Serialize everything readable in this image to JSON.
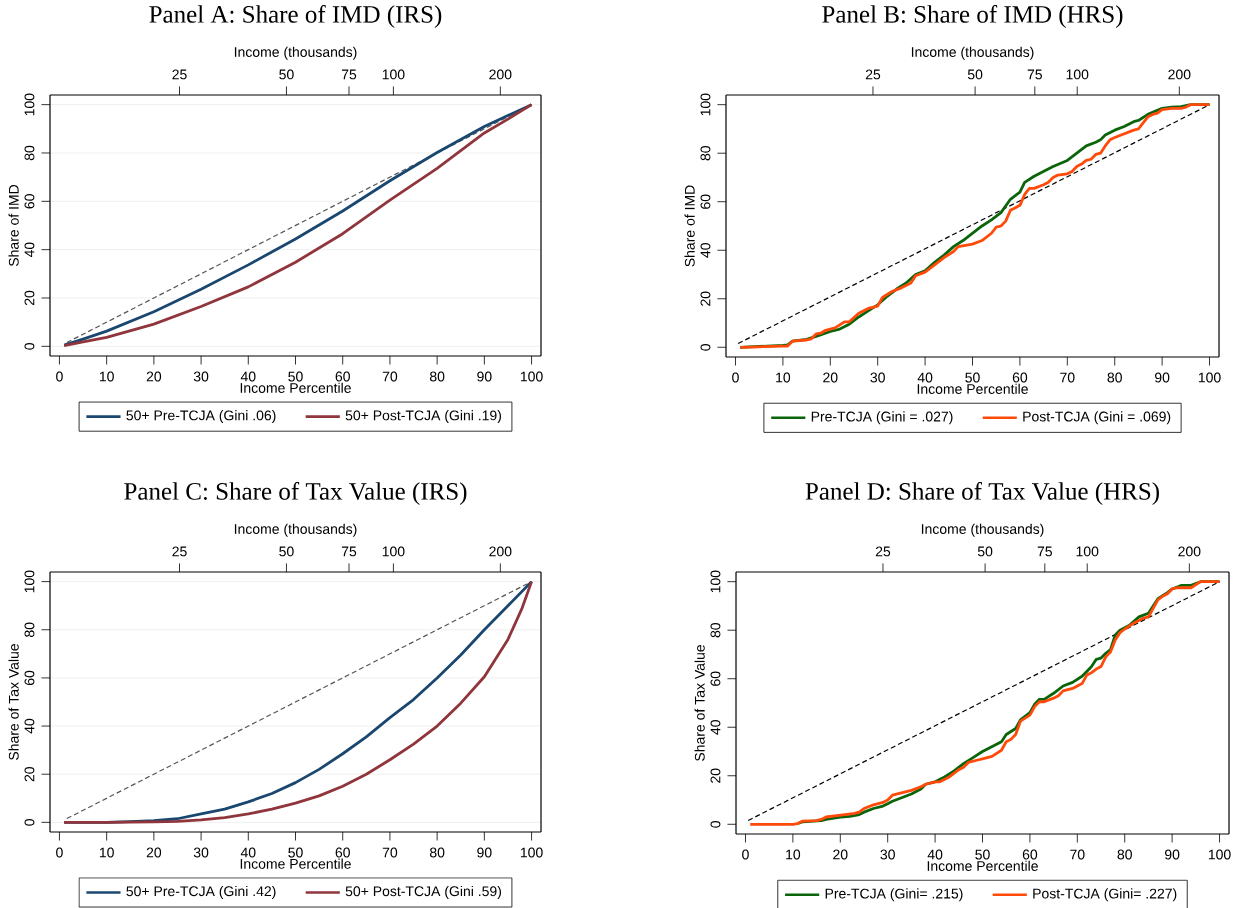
{
  "chart_data": [
    {
      "type": "line",
      "title": "Panel A: Share of IMD (IRS)",
      "xlabel": "Income Percentile",
      "ylabel": "Share of IMD",
      "x2label": "Income (thousands)",
      "xlim": [
        -2,
        102
      ],
      "ylim": [
        -4,
        104
      ],
      "xticks": [
        0,
        10,
        20,
        30,
        40,
        50,
        60,
        70,
        80,
        90,
        100
      ],
      "yticks": [
        0,
        20,
        40,
        60,
        80,
        100
      ],
      "x2lim": [
        10.8,
        260.3
      ],
      "x2ticks": [
        25,
        50,
        75,
        100,
        200
      ],
      "log": "x2",
      "grid": "y",
      "legend": "bottom",
      "marker": "none",
      "series": [
        {
          "color": "#555555",
          "line_style": "dashed",
          "x": [
            1,
            100
          ],
          "values": [
            1,
            100
          ]
        },
        {
          "name": "50+ Pre-TCJA (Gini .06)",
          "color": "#1a476f",
          "line_style": "solid",
          "x": [
            1,
            5,
            10,
            20,
            30,
            40,
            50,
            60,
            70,
            80,
            90,
            100
          ],
          "values": [
            0.5,
            3,
            6.3,
            14.3,
            23.6,
            33.7,
            44.4,
            56,
            68.5,
            80.2,
            91,
            100
          ]
        },
        {
          "name": "50+ Post-TCJA (Gini .19)",
          "color": "#90353b",
          "line_style": "solid",
          "x": [
            1,
            5,
            10,
            20,
            30,
            40,
            50,
            60,
            70,
            80,
            90,
            95,
            100
          ],
          "values": [
            0.3,
            1.8,
            3.7,
            9.2,
            16.5,
            24.6,
            34.8,
            46.6,
            60.5,
            73.6,
            88.3,
            94,
            100
          ]
        }
      ]
    },
    {
      "type": "line",
      "title": "Panel B: Share of IMD (HRS)",
      "xlabel": "Income Percentile",
      "ylabel": "Share of IMD",
      "x2label": "Income (thousands)",
      "xlim": [
        -2,
        102
      ],
      "ylim": [
        -4,
        104
      ],
      "xticks": [
        0,
        10,
        20,
        30,
        40,
        50,
        60,
        70,
        80,
        90,
        100
      ],
      "yticks": [
        0,
        20,
        40,
        60,
        80,
        100
      ],
      "x2lim": [
        9.22,
        261.8
      ],
      "x2ticks": [
        25,
        50,
        75,
        100,
        200
      ],
      "log": "x2",
      "legend": "bottom",
      "marker": "none",
      "series": [
        {
          "color": "#000000",
          "line_style": "dashed",
          "x": [
            0,
            100
          ],
          "values": [
            1,
            100
          ]
        },
        {
          "name": "Pre-TCJA (Gini = .027)",
          "color": "#0a640a",
          "line_style": "solid",
          "x": [
            1,
            10,
            11,
            12,
            15,
            17,
            20,
            22,
            24,
            26,
            28,
            30,
            32,
            34,
            36,
            38,
            40,
            42,
            44,
            46,
            48,
            50,
            52,
            54,
            56,
            58,
            60,
            61,
            63,
            65,
            67,
            70,
            72,
            74,
            76,
            77,
            78,
            80,
            82,
            84,
            85,
            87,
            90,
            92,
            94,
            96,
            100
          ],
          "values": [
            0,
            0.8,
            1,
            2.5,
            3.3,
            4.5,
            6.5,
            7.5,
            9.5,
            12.5,
            15,
            17.5,
            21,
            24,
            26.5,
            30,
            31.5,
            35,
            38,
            41.5,
            44,
            47,
            50,
            52.5,
            55.5,
            61,
            64,
            68,
            70.5,
            72.5,
            74.5,
            77,
            80,
            83,
            84.5,
            85.5,
            87.5,
            89.5,
            91,
            93,
            93.5,
            96,
            98.5,
            99,
            99.2,
            100,
            100
          ]
        },
        {
          "name": "Post-TCJA (Gini = .069)",
          "color": "#ff4a0a",
          "line_style": "solid",
          "x": [
            1,
            5,
            10,
            11,
            12,
            15,
            16,
            17,
            18,
            19,
            21,
            23,
            24,
            26,
            28,
            30,
            31,
            33,
            35,
            37,
            38,
            40,
            42,
            44,
            46,
            47,
            50,
            52,
            54,
            55,
            56,
            57,
            58,
            60,
            61,
            62,
            63,
            65,
            66,
            67,
            68,
            70,
            71,
            72,
            73,
            74,
            75,
            76,
            77,
            78,
            79,
            80,
            82,
            84,
            85,
            86,
            87,
            88,
            89,
            90,
            92,
            94,
            95,
            96,
            100
          ],
          "values": [
            0,
            0.2,
            0.5,
            0.5,
            2.5,
            3,
            3.5,
            5.5,
            5.8,
            7,
            8,
            10.5,
            10.5,
            14,
            16,
            17,
            20.5,
            23,
            24.5,
            26.5,
            29.5,
            31,
            34,
            37,
            39.5,
            41.5,
            42.5,
            44,
            47,
            49.5,
            50,
            52,
            56.5,
            58.5,
            63,
            65.5,
            65.5,
            67,
            68,
            70,
            71,
            71.5,
            72.5,
            74.5,
            75.5,
            77,
            77.5,
            79.5,
            80,
            83,
            85.5,
            86.5,
            88,
            89.5,
            90,
            92.5,
            95,
            96,
            96.5,
            98,
            98.5,
            98.5,
            99,
            100,
            100
          ]
        }
      ]
    },
    {
      "type": "line",
      "title": "Panel C: Share of Tax Value (IRS)",
      "xlabel": "Income Percentile",
      "ylabel": "Share of Tax Value",
      "x2label": "Income (thousands)",
      "xlim": [
        -2,
        102
      ],
      "ylim": [
        -4,
        104
      ],
      "xticks": [
        0,
        10,
        20,
        30,
        40,
        50,
        60,
        70,
        80,
        90,
        100
      ],
      "yticks": [
        0,
        20,
        40,
        60,
        80,
        100
      ],
      "x2lim": [
        10.8,
        260.3
      ],
      "x2ticks": [
        25,
        50,
        75,
        100,
        200
      ],
      "log": "x2",
      "grid": "y",
      "legend": "bottom",
      "marker": "none",
      "series": [
        {
          "color": "#555555",
          "line_style": "dashed",
          "x": [
            1,
            100
          ],
          "values": [
            1,
            100
          ]
        },
        {
          "name": "50+ Pre-TCJA (Gini .42)",
          "color": "#1a476f",
          "line_style": "solid",
          "x": [
            1,
            10,
            15,
            20,
            25,
            30,
            35,
            40,
            45,
            50,
            55,
            60,
            65,
            70,
            75,
            80,
            85,
            90,
            95,
            100
          ],
          "values": [
            0,
            0,
            0.3,
            0.7,
            1.5,
            3.5,
            5.5,
            8.5,
            12,
            16.5,
            22,
            28.5,
            35.5,
            43.5,
            51,
            60,
            69.5,
            80,
            90,
            100
          ]
        },
        {
          "name": "50+ Post-TCJA (Gini .59)",
          "color": "#90353b",
          "line_style": "solid",
          "x": [
            1,
            10,
            20,
            25,
            30,
            35,
            40,
            45,
            50,
            55,
            60,
            65,
            70,
            75,
            80,
            85,
            90,
            95,
            98,
            100
          ],
          "values": [
            0,
            0,
            0.2,
            0.4,
            1,
            2,
            3.5,
            5.5,
            8,
            11,
            15,
            20,
            26,
            32.5,
            40,
            49.5,
            60.5,
            76,
            89,
            100
          ]
        }
      ]
    },
    {
      "type": "line",
      "title": "Panel D: Share of Tax Value (HRS)",
      "xlabel": "Income Percentile",
      "ylabel": "Share of Tax Value",
      "x2label": "Income (thousands)",
      "xlim": [
        -2,
        102
      ],
      "ylim": [
        -4,
        104
      ],
      "xticks": [
        0,
        10,
        20,
        30,
        40,
        50,
        60,
        70,
        80,
        90,
        100
      ],
      "yticks": [
        0,
        20,
        40,
        60,
        80,
        100
      ],
      "x2lim": [
        9.22,
        261.8
      ],
      "x2ticks": [
        25,
        50,
        75,
        100,
        200
      ],
      "log": "x2",
      "legend": "bottom",
      "marker": "none",
      "series": [
        {
          "color": "#000000",
          "line_style": "dashed",
          "x": [
            0,
            100
          ],
          "values": [
            1,
            100
          ]
        },
        {
          "name": "Pre-TCJA (Gini= .215)",
          "color": "#0a640a",
          "line_style": "solid",
          "x": [
            11,
            12,
            16,
            17,
            20,
            22,
            24,
            25,
            27,
            29,
            30,
            31,
            33,
            35,
            37,
            38,
            40,
            42,
            44,
            46,
            48,
            50,
            52,
            54,
            55,
            57,
            58,
            60,
            61,
            62,
            63,
            65,
            67,
            69,
            71,
            72,
            73,
            74,
            75,
            76,
            77,
            78,
            79,
            81,
            83,
            85,
            86,
            87,
            89,
            90,
            92,
            94,
            96,
            100
          ],
          "values": [
            0.3,
            1,
            1.5,
            2,
            3,
            3.3,
            4,
            5,
            6.5,
            7.5,
            8.5,
            9.5,
            11,
            12.5,
            14.5,
            16.5,
            17.5,
            19.5,
            22,
            25,
            27.5,
            30,
            32,
            34,
            37,
            39.5,
            43,
            46,
            49.5,
            51.5,
            51.5,
            54,
            57,
            58.5,
            61,
            63,
            65,
            68,
            68.5,
            70.5,
            72,
            78,
            80,
            82,
            85.5,
            87,
            90,
            93,
            95.5,
            97,
            98.5,
            98.5,
            100,
            100
          ]
        },
        {
          "name": "Post-TCJA (Gini= .227)",
          "color": "#ff4a0a",
          "line_style": "solid",
          "x": [
            1,
            10,
            11,
            12,
            15,
            16,
            17,
            19,
            21,
            23,
            24,
            25,
            27,
            29,
            30,
            31,
            33,
            35,
            37,
            38,
            40,
            41,
            43,
            45,
            46,
            47,
            49,
            50,
            52,
            54,
            55,
            56,
            57,
            58,
            60,
            61,
            62,
            63,
            65,
            66,
            67,
            69,
            71,
            72,
            73,
            74,
            75,
            76,
            77,
            78,
            79,
            80,
            82,
            84,
            85,
            86,
            87,
            88,
            89,
            90,
            91,
            94,
            96,
            100
          ],
          "values": [
            0,
            0,
            0.3,
            1.3,
            1.5,
            2,
            3,
            3.5,
            4,
            4.5,
            5,
            6.5,
            8,
            9,
            10,
            12,
            13,
            14,
            15.5,
            16.5,
            17.5,
            17.5,
            19.5,
            22.5,
            23.5,
            25.5,
            26.5,
            27,
            28,
            30.5,
            34,
            35,
            37,
            42.5,
            45,
            48.5,
            50.5,
            50.5,
            52,
            53,
            55,
            56,
            58,
            61.5,
            62.5,
            64,
            65,
            69,
            71,
            76,
            79,
            80.5,
            83,
            85,
            85.5,
            89,
            92.5,
            94,
            95,
            97,
            97.5,
            97.5,
            100,
            100
          ]
        }
      ]
    }
  ]
}
